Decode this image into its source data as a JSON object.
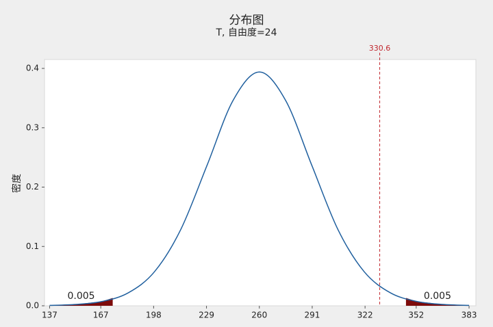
{
  "chart_data": {
    "type": "distribution",
    "title": "分布图",
    "subtitle": "T, 自由度=24",
    "y_label": "密度",
    "x": [
      137,
      152.4,
      167.8,
      183.1,
      198.5,
      213.9,
      229.3,
      244.6,
      260,
      275.4,
      290.8,
      306.1,
      321.5,
      336.9,
      352.3,
      367.6,
      383
    ],
    "values": [
      0.00066,
      0.00227,
      0.00736,
      0.0218,
      0.0574,
      0.1285,
      0.2365,
      0.3461,
      0.394,
      0.3461,
      0.2365,
      0.1285,
      0.0574,
      0.0218,
      0.00736,
      0.00227,
      0.00066
    ],
    "color": "#1f5f9e",
    "shaded_regions": [
      {
        "xlim": [
          134,
          174
        ],
        "value": 0.005,
        "color": "#7d0b0b"
      },
      {
        "xlim": [
          346,
          387
        ],
        "value": 0.005,
        "color": "#7d0b0b"
      }
    ],
    "reference_line": {
      "x": 330.6,
      "color": "#c0262d"
    },
    "xlim": [
      134,
      387
    ],
    "ylim": [
      0,
      0.415
    ],
    "xticks": [
      137,
      167,
      198,
      229,
      260,
      291,
      322,
      352,
      383
    ],
    "yticks": [
      {
        "value": 0,
        "label": "0.0"
      },
      0.1,
      0.2,
      0.3,
      0.4
    ]
  }
}
